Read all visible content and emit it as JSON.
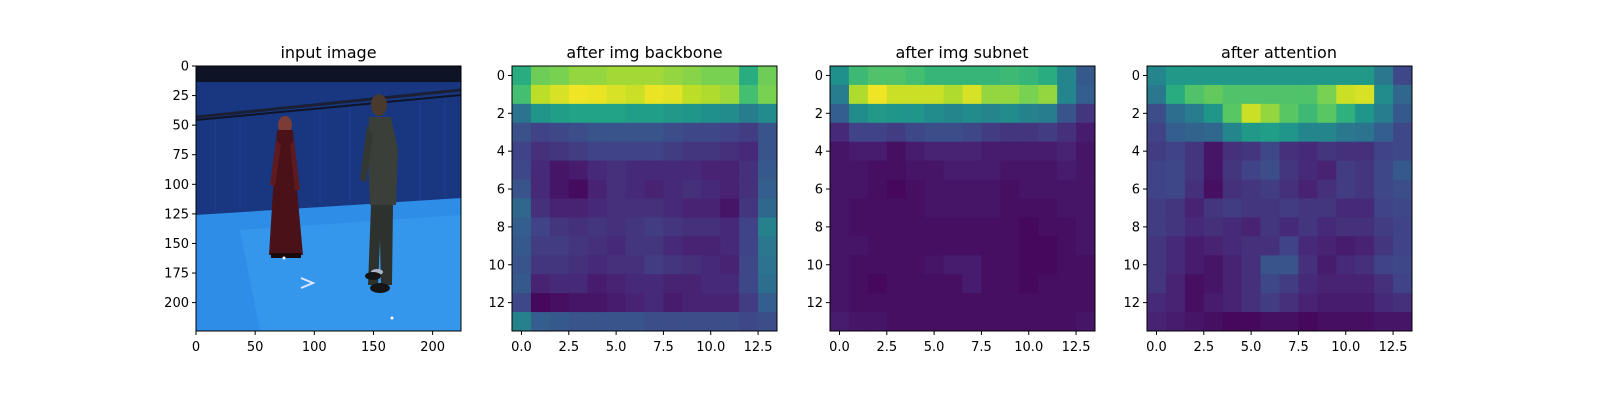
{
  "chart_data": [
    {
      "type": "image",
      "title": "input image",
      "xlabel": "",
      "ylabel": "",
      "xlim": [
        0,
        224
      ],
      "ylim": [
        224,
        0
      ],
      "xticks": [
        0,
        50,
        100,
        150,
        200
      ],
      "yticks": [
        0,
        25,
        50,
        75,
        100,
        125,
        150,
        175,
        200
      ],
      "scene": {
        "description": "two people standing in a blue motion-capture studio",
        "colors": {
          "wall": "#1a3a8a",
          "floor": "#2f8ee8",
          "rig": "#0d1325"
        }
      }
    },
    {
      "type": "heatmap",
      "title": "after img backbone",
      "xlabel": "",
      "ylabel": "",
      "xlim": [
        -0.5,
        13.5
      ],
      "ylim": [
        13.5,
        -0.5
      ],
      "xticks": [
        0.0,
        2.5,
        5.0,
        7.5,
        10.0,
        12.5
      ],
      "yticks": [
        0,
        2,
        4,
        6,
        8,
        10,
        12
      ],
      "colormap": "viridis",
      "values": [
        [
          0.62,
          0.78,
          0.8,
          0.84,
          0.84,
          0.86,
          0.86,
          0.86,
          0.84,
          0.82,
          0.8,
          0.8,
          0.62,
          0.78
        ],
        [
          0.7,
          0.9,
          0.94,
          0.98,
          0.97,
          0.94,
          0.92,
          0.97,
          0.96,
          0.9,
          0.88,
          0.85,
          0.7,
          0.8
        ],
        [
          0.38,
          0.52,
          0.56,
          0.58,
          0.58,
          0.58,
          0.56,
          0.56,
          0.54,
          0.52,
          0.5,
          0.48,
          0.42,
          0.48
        ],
        [
          0.25,
          0.2,
          0.22,
          0.24,
          0.26,
          0.26,
          0.26,
          0.26,
          0.24,
          0.22,
          0.22,
          0.2,
          0.18,
          0.26
        ],
        [
          0.2,
          0.14,
          0.16,
          0.18,
          0.2,
          0.2,
          0.2,
          0.2,
          0.18,
          0.16,
          0.16,
          0.14,
          0.12,
          0.26
        ],
        [
          0.22,
          0.12,
          0.06,
          0.08,
          0.12,
          0.14,
          0.12,
          0.12,
          0.12,
          0.12,
          0.1,
          0.1,
          0.14,
          0.28
        ],
        [
          0.26,
          0.12,
          0.06,
          0.03,
          0.1,
          0.14,
          0.12,
          0.1,
          0.12,
          0.14,
          0.12,
          0.1,
          0.14,
          0.3
        ],
        [
          0.34,
          0.14,
          0.1,
          0.1,
          0.12,
          0.14,
          0.14,
          0.14,
          0.12,
          0.1,
          0.1,
          0.06,
          0.16,
          0.34
        ],
        [
          0.3,
          0.2,
          0.16,
          0.14,
          0.16,
          0.14,
          0.16,
          0.18,
          0.16,
          0.14,
          0.14,
          0.12,
          0.2,
          0.44
        ],
        [
          0.28,
          0.18,
          0.18,
          0.16,
          0.14,
          0.12,
          0.16,
          0.16,
          0.12,
          0.1,
          0.1,
          0.12,
          0.2,
          0.4
        ],
        [
          0.26,
          0.16,
          0.16,
          0.14,
          0.12,
          0.14,
          0.14,
          0.18,
          0.16,
          0.14,
          0.12,
          0.1,
          0.22,
          0.38
        ],
        [
          0.28,
          0.1,
          0.12,
          0.12,
          0.08,
          0.1,
          0.12,
          0.12,
          0.1,
          0.1,
          0.12,
          0.12,
          0.22,
          0.36
        ],
        [
          0.22,
          0.02,
          0.04,
          0.06,
          0.06,
          0.08,
          0.1,
          0.12,
          0.08,
          0.1,
          0.1,
          0.1,
          0.18,
          0.3
        ],
        [
          0.44,
          0.3,
          0.28,
          0.26,
          0.26,
          0.26,
          0.26,
          0.24,
          0.24,
          0.24,
          0.24,
          0.24,
          0.22,
          0.24
        ]
      ]
    },
    {
      "type": "heatmap",
      "title": "after img subnet",
      "xlabel": "",
      "ylabel": "",
      "xlim": [
        -0.5,
        13.5
      ],
      "ylim": [
        13.5,
        -0.5
      ],
      "xticks": [
        0.0,
        2.5,
        5.0,
        7.5,
        10.0,
        12.5
      ],
      "yticks": [
        0,
        2,
        4,
        6,
        8,
        10,
        12
      ],
      "colormap": "viridis",
      "values": [
        [
          0.5,
          0.68,
          0.72,
          0.72,
          0.7,
          0.66,
          0.66,
          0.66,
          0.66,
          0.68,
          0.66,
          0.62,
          0.46,
          0.28
        ],
        [
          0.42,
          0.88,
          0.98,
          0.92,
          0.92,
          0.92,
          0.88,
          0.94,
          0.84,
          0.84,
          0.8,
          0.84,
          0.46,
          0.3
        ],
        [
          0.3,
          0.48,
          0.54,
          0.52,
          0.52,
          0.48,
          0.46,
          0.48,
          0.46,
          0.48,
          0.44,
          0.42,
          0.26,
          0.16
        ],
        [
          0.12,
          0.2,
          0.2,
          0.18,
          0.22,
          0.24,
          0.24,
          0.22,
          0.18,
          0.16,
          0.16,
          0.18,
          0.14,
          0.08
        ],
        [
          0.06,
          0.08,
          0.08,
          0.04,
          0.08,
          0.1,
          0.1,
          0.1,
          0.08,
          0.08,
          0.08,
          0.08,
          0.1,
          0.06
        ],
        [
          0.06,
          0.06,
          0.04,
          0.04,
          0.06,
          0.06,
          0.08,
          0.08,
          0.08,
          0.06,
          0.06,
          0.06,
          0.08,
          0.06
        ],
        [
          0.06,
          0.06,
          0.04,
          0.02,
          0.04,
          0.06,
          0.06,
          0.06,
          0.06,
          0.04,
          0.06,
          0.06,
          0.06,
          0.06
        ],
        [
          0.06,
          0.04,
          0.04,
          0.04,
          0.04,
          0.06,
          0.06,
          0.06,
          0.06,
          0.04,
          0.04,
          0.04,
          0.06,
          0.06
        ],
        [
          0.06,
          0.04,
          0.04,
          0.04,
          0.04,
          0.04,
          0.04,
          0.04,
          0.04,
          0.04,
          0.02,
          0.04,
          0.04,
          0.06
        ],
        [
          0.06,
          0.06,
          0.04,
          0.04,
          0.04,
          0.04,
          0.04,
          0.04,
          0.04,
          0.04,
          0.02,
          0.02,
          0.04,
          0.06
        ],
        [
          0.06,
          0.04,
          0.04,
          0.04,
          0.04,
          0.06,
          0.08,
          0.08,
          0.04,
          0.04,
          0.02,
          0.02,
          0.04,
          0.04
        ],
        [
          0.06,
          0.04,
          0.02,
          0.04,
          0.04,
          0.04,
          0.04,
          0.08,
          0.04,
          0.04,
          0.02,
          0.04,
          0.04,
          0.04
        ],
        [
          0.06,
          0.04,
          0.04,
          0.04,
          0.04,
          0.04,
          0.04,
          0.04,
          0.04,
          0.04,
          0.04,
          0.04,
          0.04,
          0.04
        ],
        [
          0.08,
          0.06,
          0.06,
          0.04,
          0.04,
          0.04,
          0.04,
          0.04,
          0.04,
          0.04,
          0.04,
          0.04,
          0.04,
          0.06
        ]
      ]
    },
    {
      "type": "heatmap",
      "title": "after attention",
      "xlabel": "",
      "ylabel": "",
      "xlim": [
        -0.5,
        13.5
      ],
      "ylim": [
        13.5,
        -0.5
      ],
      "xticks": [
        0.0,
        2.5,
        5.0,
        7.5,
        10.0,
        12.5
      ],
      "yticks": [
        0,
        2,
        4,
        6,
        8,
        10,
        12
      ],
      "colormap": "viridis",
      "values": [
        [
          0.46,
          0.54,
          0.54,
          0.54,
          0.54,
          0.54,
          0.54,
          0.54,
          0.54,
          0.54,
          0.54,
          0.54,
          0.4,
          0.22
        ],
        [
          0.4,
          0.62,
          0.72,
          0.76,
          0.72,
          0.72,
          0.72,
          0.72,
          0.72,
          0.8,
          0.92,
          0.94,
          0.48,
          0.34
        ],
        [
          0.24,
          0.36,
          0.42,
          0.52,
          0.74,
          0.92,
          0.84,
          0.74,
          0.68,
          0.74,
          0.64,
          0.52,
          0.42,
          0.28
        ],
        [
          0.2,
          0.3,
          0.32,
          0.34,
          0.46,
          0.54,
          0.56,
          0.52,
          0.46,
          0.46,
          0.4,
          0.38,
          0.3,
          0.22
        ],
        [
          0.18,
          0.2,
          0.16,
          0.06,
          0.14,
          0.16,
          0.22,
          0.14,
          0.12,
          0.16,
          0.14,
          0.14,
          0.2,
          0.22
        ],
        [
          0.2,
          0.22,
          0.16,
          0.06,
          0.16,
          0.2,
          0.24,
          0.16,
          0.12,
          0.1,
          0.18,
          0.16,
          0.22,
          0.28
        ],
        [
          0.2,
          0.22,
          0.14,
          0.04,
          0.14,
          0.16,
          0.18,
          0.14,
          0.1,
          0.14,
          0.18,
          0.16,
          0.22,
          0.24
        ],
        [
          0.18,
          0.16,
          0.1,
          0.16,
          0.18,
          0.16,
          0.16,
          0.18,
          0.16,
          0.16,
          0.12,
          0.12,
          0.2,
          0.22
        ],
        [
          0.18,
          0.16,
          0.12,
          0.14,
          0.12,
          0.1,
          0.16,
          0.12,
          0.16,
          0.12,
          0.14,
          0.14,
          0.18,
          0.2
        ],
        [
          0.16,
          0.12,
          0.08,
          0.1,
          0.12,
          0.14,
          0.14,
          0.2,
          0.12,
          0.1,
          0.08,
          0.1,
          0.16,
          0.2
        ],
        [
          0.16,
          0.12,
          0.08,
          0.06,
          0.1,
          0.14,
          0.26,
          0.26,
          0.14,
          0.08,
          0.12,
          0.14,
          0.2,
          0.22
        ],
        [
          0.16,
          0.1,
          0.04,
          0.06,
          0.1,
          0.14,
          0.22,
          0.18,
          0.12,
          0.1,
          0.1,
          0.1,
          0.14,
          0.2
        ],
        [
          0.12,
          0.1,
          0.04,
          0.08,
          0.1,
          0.14,
          0.18,
          0.14,
          0.1,
          0.08,
          0.08,
          0.08,
          0.12,
          0.14
        ],
        [
          0.1,
          0.08,
          0.06,
          0.04,
          0.02,
          0.02,
          0.04,
          0.04,
          0.02,
          0.04,
          0.04,
          0.04,
          0.06,
          0.06
        ]
      ]
    }
  ]
}
